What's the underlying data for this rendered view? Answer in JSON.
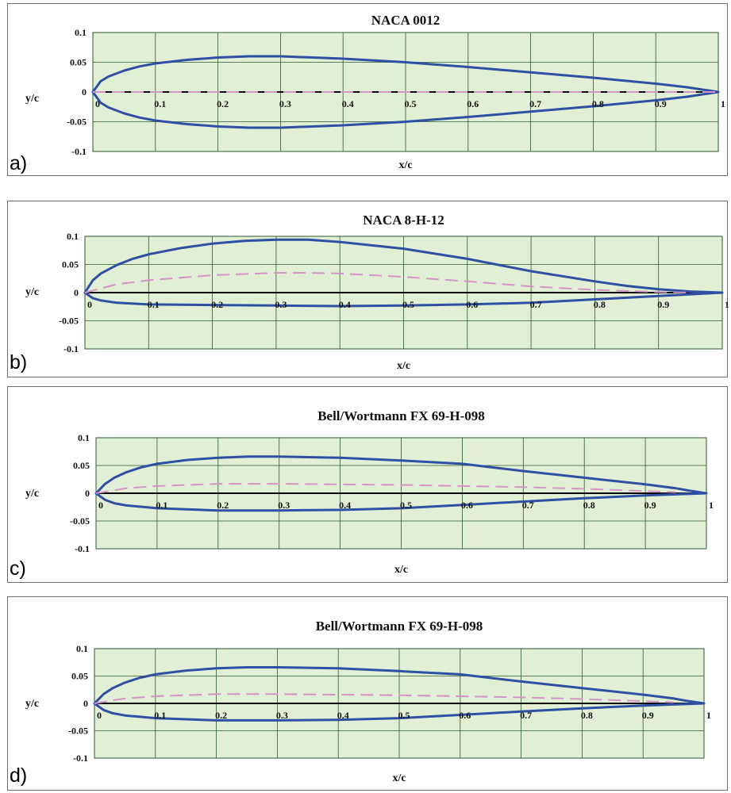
{
  "colors": {
    "plot_bg": "#e1f0d4",
    "grid": "#2d5a2d",
    "outline": "#2f4fa3",
    "camber": "#d693c8",
    "axis": "#000000"
  },
  "chart_data": [
    {
      "type": "line",
      "panel_label": "a)",
      "title": "NACA 0012",
      "xlabel": "x/c",
      "ylabel": "y/c",
      "xlim": [
        0,
        1
      ],
      "ylim": [
        -0.1,
        0.1
      ],
      "x_ticks": [
        "0",
        "0.1",
        "0.2",
        "0.3",
        "0.4",
        "0.5",
        "0.6",
        "0.7",
        "0.8",
        "0.9",
        "1"
      ],
      "y_ticks": [
        "0.1",
        "0.05",
        "0",
        "-0.05",
        "-0.1"
      ],
      "grid": true,
      "series": [
        {
          "kind": "outline",
          "x": [
            1,
            0.95,
            0.9,
            0.8,
            0.7,
            0.6,
            0.5,
            0.4,
            0.3,
            0.25,
            0.2,
            0.15,
            0.1,
            0.075,
            0.05,
            0.025,
            0.0125,
            0,
            0.0125,
            0.025,
            0.05,
            0.075,
            0.1,
            0.15,
            0.2,
            0.25,
            0.3,
            0.4,
            0.5,
            0.6,
            0.7,
            0.8,
            0.9,
            0.95,
            1
          ],
          "y": [
            0,
            0.008,
            0.014,
            0.024,
            0.033,
            0.042,
            0.05,
            0.056,
            0.06,
            0.06,
            0.058,
            0.054,
            0.048,
            0.043,
            0.036,
            0.026,
            0.018,
            0,
            -0.018,
            -0.026,
            -0.036,
            -0.043,
            -0.048,
            -0.054,
            -0.058,
            -0.06,
            -0.06,
            -0.056,
            -0.05,
            -0.042,
            -0.033,
            -0.024,
            -0.014,
            -0.008,
            0
          ]
        },
        {
          "kind": "camber",
          "x": [
            0,
            1
          ],
          "y": [
            0,
            0
          ]
        }
      ]
    },
    {
      "type": "line",
      "panel_label": "b)",
      "title": "NACA 8-H-12",
      "xlabel": "x/c",
      "ylabel": "y/c",
      "xlim": [
        0,
        1
      ],
      "ylim": [
        -0.1,
        0.1
      ],
      "x_ticks": [
        "0",
        "0.1",
        "0.2",
        "0.3",
        "0.4",
        "0.5",
        "0.6",
        "0.7",
        "0.8",
        "0.9",
        "1"
      ],
      "y_ticks": [
        "0.1",
        "0.05",
        "0",
        "-0.05",
        "-0.1"
      ],
      "grid": true,
      "series": [
        {
          "kind": "outline",
          "x": [
            1,
            0.95,
            0.9,
            0.85,
            0.8,
            0.7,
            0.6,
            0.5,
            0.4,
            0.35,
            0.3,
            0.25,
            0.2,
            0.15,
            0.1,
            0.075,
            0.05,
            0.025,
            0.0125,
            0,
            0.0125,
            0.025,
            0.05,
            0.1,
            0.2,
            0.3,
            0.4,
            0.5,
            0.6,
            0.7,
            0.8,
            0.9,
            0.95,
            1
          ],
          "y": [
            0,
            0.002,
            0.006,
            0.012,
            0.02,
            0.038,
            0.06,
            0.078,
            0.09,
            0.094,
            0.094,
            0.092,
            0.087,
            0.079,
            0.068,
            0.06,
            0.049,
            0.034,
            0.022,
            0,
            -0.01,
            -0.014,
            -0.018,
            -0.021,
            -0.022,
            -0.023,
            -0.024,
            -0.023,
            -0.021,
            -0.018,
            -0.012,
            -0.006,
            -0.003,
            0
          ]
        },
        {
          "kind": "camber",
          "x": [
            0,
            0.05,
            0.1,
            0.2,
            0.3,
            0.35,
            0.4,
            0.5,
            0.6,
            0.7,
            0.8,
            0.9,
            0.95
          ],
          "y": [
            0,
            0.015,
            0.022,
            0.031,
            0.035,
            0.035,
            0.034,
            0.028,
            0.02,
            0.011,
            0.005,
            0.001,
            0
          ]
        }
      ]
    },
    {
      "type": "line",
      "panel_label": "c)",
      "title": "Bell/Wortmann FX 69-H-098",
      "xlabel": "x/c",
      "ylabel": "y/c",
      "xlim": [
        0,
        1
      ],
      "ylim": [
        -0.1,
        0.1
      ],
      "x_ticks": [
        "0",
        "0.1",
        "0.2",
        "0.3",
        "0.4",
        "0.5",
        "0.6",
        "0.7",
        "0.8",
        "0.9",
        "1"
      ],
      "y_ticks": [
        "0.1",
        "0.05",
        "0",
        "-0.05",
        "-0.1"
      ],
      "grid": true,
      "series": [
        {
          "kind": "outline",
          "x": [
            1,
            0.97,
            0.95,
            0.9,
            0.8,
            0.7,
            0.6,
            0.5,
            0.4,
            0.3,
            0.25,
            0.2,
            0.15,
            0.1,
            0.075,
            0.05,
            0.03,
            0.015,
            0,
            0.015,
            0.03,
            0.05,
            0.1,
            0.2,
            0.3,
            0.4,
            0.5,
            0.6,
            0.7,
            0.8,
            0.9,
            0.95,
            1
          ],
          "y": [
            0,
            0.005,
            0.009,
            0.016,
            0.028,
            0.04,
            0.053,
            0.059,
            0.064,
            0.066,
            0.066,
            0.064,
            0.06,
            0.053,
            0.047,
            0.038,
            0.028,
            0.017,
            0,
            -0.012,
            -0.018,
            -0.022,
            -0.027,
            -0.031,
            -0.031,
            -0.03,
            -0.027,
            -0.021,
            -0.015,
            -0.009,
            -0.004,
            -0.002,
            0
          ]
        },
        {
          "kind": "camber",
          "x": [
            0,
            0.05,
            0.1,
            0.2,
            0.3,
            0.4,
            0.5,
            0.6,
            0.7,
            0.8,
            0.9,
            0.95
          ],
          "y": [
            0,
            0.009,
            0.013,
            0.017,
            0.017,
            0.016,
            0.015,
            0.013,
            0.011,
            0.008,
            0.004,
            0.002
          ]
        }
      ]
    },
    {
      "type": "line",
      "panel_label": "d)",
      "title": "Bell/Wortmann FX 69-H-098",
      "xlabel": "x/c",
      "ylabel": "y/c",
      "xlim": [
        0,
        1
      ],
      "ylim": [
        -0.1,
        0.1
      ],
      "x_ticks": [
        "0",
        "0.1",
        "0.2",
        "0.3",
        "0.4",
        "0.5",
        "0.6",
        "0.7",
        "0.8",
        "0.9",
        "1"
      ],
      "y_ticks": [
        "0.1",
        "0.05",
        "0",
        "-0.05",
        "-0.1"
      ],
      "grid": true,
      "series": [
        {
          "kind": "outline",
          "x": [
            1,
            0.97,
            0.95,
            0.9,
            0.8,
            0.7,
            0.6,
            0.5,
            0.4,
            0.3,
            0.25,
            0.2,
            0.15,
            0.1,
            0.075,
            0.05,
            0.03,
            0.015,
            0,
            0.015,
            0.03,
            0.05,
            0.1,
            0.2,
            0.3,
            0.4,
            0.5,
            0.6,
            0.7,
            0.8,
            0.9,
            0.95,
            1
          ],
          "y": [
            0,
            0.005,
            0.009,
            0.016,
            0.028,
            0.04,
            0.053,
            0.059,
            0.064,
            0.066,
            0.066,
            0.064,
            0.06,
            0.053,
            0.047,
            0.038,
            0.028,
            0.017,
            0,
            -0.012,
            -0.018,
            -0.022,
            -0.027,
            -0.031,
            -0.031,
            -0.03,
            -0.027,
            -0.021,
            -0.015,
            -0.009,
            -0.004,
            -0.002,
            0
          ]
        },
        {
          "kind": "camber",
          "x": [
            0,
            0.05,
            0.1,
            0.2,
            0.3,
            0.4,
            0.5,
            0.6,
            0.7,
            0.8,
            0.9,
            0.95
          ],
          "y": [
            0,
            0.009,
            0.013,
            0.017,
            0.017,
            0.016,
            0.015,
            0.013,
            0.011,
            0.008,
            0.004,
            0.002
          ]
        }
      ]
    }
  ]
}
